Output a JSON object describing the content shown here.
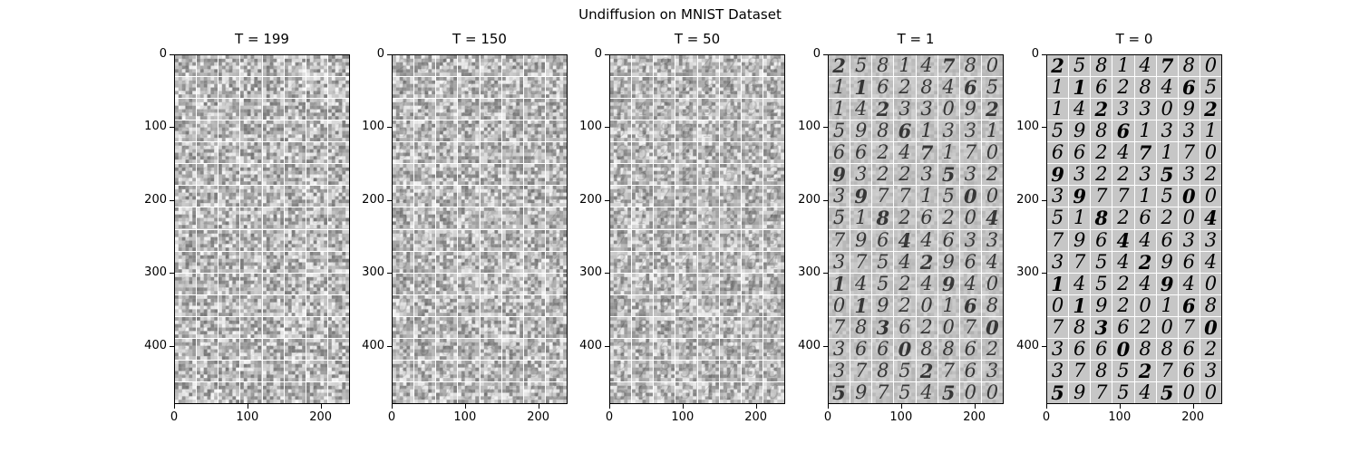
{
  "figure": {
    "suptitle": "Undiffusion on MNIST Dataset"
  },
  "panels": [
    {
      "title": "T = 199",
      "noise_level": 0.96,
      "digit_opacity": 0.06
    },
    {
      "title": "T = 150",
      "noise_level": 0.92,
      "digit_opacity": 0.1
    },
    {
      "title": "T = 50",
      "noise_level": 0.86,
      "digit_opacity": 0.14
    },
    {
      "title": "T = 1",
      "noise_level": 0.25,
      "digit_opacity": 0.72
    },
    {
      "title": "T = 0",
      "noise_level": 0.0,
      "digit_opacity": 1.0
    }
  ],
  "axes": {
    "x_ticks": [
      "0",
      "100",
      "200"
    ],
    "x_tick_values": [
      0,
      100,
      200
    ],
    "x_max": 240,
    "y_ticks": [
      "0",
      "100",
      "200",
      "300",
      "400"
    ],
    "y_tick_values": [
      0,
      100,
      200,
      300,
      400
    ],
    "y_max": 480
  },
  "digit_grid": [
    "25814780",
    "11628465",
    "14233092",
    "59861331",
    "66247170",
    "93223532",
    "39771500",
    "51826204",
    "79644633",
    "37542964",
    "14524940",
    "01920168",
    "78362070",
    "36608862",
    "37852763",
    "59754500"
  ]
}
